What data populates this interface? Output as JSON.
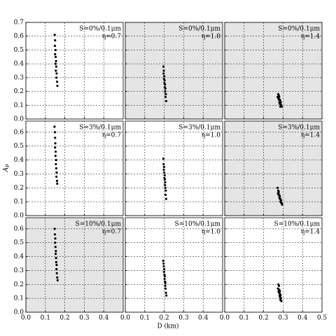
{
  "figure": {
    "xlabel": "D (km)",
    "ylabel_main": "A",
    "ylabel_sub": "p"
  },
  "chart_data": [
    {
      "type": "scatter",
      "background": "#ffffff",
      "annotations": [
        "S=0%/0.1μm",
        "η=0.7"
      ],
      "xlim": [
        0,
        0.5
      ],
      "ylim": [
        0,
        0.7
      ],
      "xticks": [
        0,
        0.1,
        0.2,
        0.3,
        0.4
      ],
      "yticks": [
        {
          "value": 0,
          "label": "0.0"
        },
        {
          "value": 0.1,
          "label": "0.1"
        },
        {
          "value": 0.2,
          "label": "0.2"
        },
        {
          "value": 0.3,
          "label": "0.3"
        },
        {
          "value": 0.4,
          "label": "0.4"
        },
        {
          "value": 0.5,
          "label": "0.5"
        },
        {
          "value": 0.6,
          "label": "0.6"
        },
        {
          "value": 0.7,
          "label": "0.7"
        }
      ],
      "grid": true,
      "color": "#000000",
      "x": [
        0.148,
        0.15,
        0.149,
        0.152,
        0.15,
        0.153,
        0.155,
        0.152,
        0.156,
        0.154,
        0.158,
        0.157,
        0.16,
        0.162
      ],
      "values": [
        0.61,
        0.57,
        0.53,
        0.5,
        0.47,
        0.45,
        0.42,
        0.4,
        0.38,
        0.35,
        0.33,
        0.3,
        0.27,
        0.24
      ]
    },
    {
      "type": "scatter",
      "background": "#e5e5e5",
      "annotations": [
        "S=0%/0.1μm",
        "η=1.0"
      ],
      "xlim": [
        0,
        0.5
      ],
      "ylim": [
        0,
        0.7
      ],
      "xticks": [
        0,
        0.1,
        0.2,
        0.3,
        0.4
      ],
      "yticks": [
        0,
        0.1,
        0.2,
        0.3,
        0.4,
        0.5,
        0.6,
        0.7
      ],
      "grid": true,
      "color": "#000000",
      "x": [
        0.196,
        0.198,
        0.197,
        0.2,
        0.199,
        0.202,
        0.201,
        0.204,
        0.203,
        0.206,
        0.205,
        0.208,
        0.207,
        0.21
      ],
      "values": [
        0.38,
        0.35,
        0.33,
        0.31,
        0.29,
        0.28,
        0.26,
        0.25,
        0.23,
        0.22,
        0.2,
        0.18,
        0.16,
        0.13
      ]
    },
    {
      "type": "scatter",
      "background": "#e5e5e5",
      "annotations": [
        "S=0%/0.1μm",
        "η=1.4"
      ],
      "xlim": [
        0,
        0.5
      ],
      "ylim": [
        0,
        0.7
      ],
      "xticks": [
        0,
        0.1,
        0.2,
        0.3,
        0.4,
        0.5
      ],
      "yticks": [
        0,
        0.1,
        0.2,
        0.3,
        0.4,
        0.5,
        0.6,
        0.7
      ],
      "grid": true,
      "color": "#000000",
      "x": [
        0.275,
        0.278,
        0.272,
        0.28,
        0.276,
        0.283,
        0.279,
        0.285,
        0.281,
        0.288,
        0.284,
        0.29,
        0.286,
        0.293
      ],
      "values": [
        0.18,
        0.17,
        0.16,
        0.16,
        0.15,
        0.14,
        0.14,
        0.13,
        0.12,
        0.12,
        0.11,
        0.1,
        0.09,
        0.09
      ]
    },
    {
      "type": "scatter",
      "background": "#ffffff",
      "annotations": [
        "S=3%/0.1μm",
        "η=0.7"
      ],
      "xlim": [
        0,
        0.5
      ],
      "ylim": [
        0,
        0.68
      ],
      "xticks": [
        0,
        0.1,
        0.2,
        0.3,
        0.4
      ],
      "yticks": [
        {
          "value": 0,
          "label": "0.0"
        },
        {
          "value": 0.1,
          "label": "0.1"
        },
        {
          "value": 0.2,
          "label": "0.2"
        },
        {
          "value": 0.3,
          "label": "0.3"
        },
        {
          "value": 0.4,
          "label": "0.4"
        },
        {
          "value": 0.5,
          "label": "0.5"
        },
        {
          "value": 0.6,
          "label": "0.6"
        }
      ],
      "grid": true,
      "color": "#000000",
      "x": [
        0.147,
        0.149,
        0.15,
        0.151,
        0.15,
        0.153,
        0.152,
        0.155,
        0.154,
        0.156,
        0.158,
        0.157,
        0.16,
        0.161
      ],
      "values": [
        0.64,
        0.6,
        0.56,
        0.52,
        0.49,
        0.46,
        0.43,
        0.4,
        0.37,
        0.34,
        0.31,
        0.28,
        0.25,
        0.23
      ]
    },
    {
      "type": "scatter",
      "background": "#ffffff",
      "annotations": [
        "S=3%/0.1μm",
        "η=1.0"
      ],
      "xlim": [
        0,
        0.5
      ],
      "ylim": [
        0,
        0.68
      ],
      "xticks": [
        0,
        0.1,
        0.2,
        0.3,
        0.4
      ],
      "yticks": [
        0,
        0.1,
        0.2,
        0.3,
        0.4,
        0.5,
        0.6
      ],
      "grid": true,
      "color": "#000000",
      "x": [
        0.196,
        0.197,
        0.199,
        0.198,
        0.2,
        0.202,
        0.201,
        0.203,
        0.205,
        0.204,
        0.206,
        0.208,
        0.207,
        0.21
      ],
      "values": [
        0.41,
        0.37,
        0.35,
        0.33,
        0.31,
        0.29,
        0.27,
        0.26,
        0.24,
        0.22,
        0.2,
        0.18,
        0.15,
        0.12
      ]
    },
    {
      "type": "scatter",
      "background": "#e5e5e5",
      "annotations": [
        "S=3%/0.1μm",
        "η=1.4"
      ],
      "xlim": [
        0,
        0.5
      ],
      "ylim": [
        0,
        0.68
      ],
      "xticks": [
        0,
        0.1,
        0.2,
        0.3,
        0.4,
        0.5
      ],
      "yticks": [
        0,
        0.1,
        0.2,
        0.3,
        0.4,
        0.5,
        0.6
      ],
      "grid": true,
      "color": "#000000",
      "x": [
        0.272,
        0.275,
        0.278,
        0.274,
        0.28,
        0.277,
        0.283,
        0.281,
        0.286,
        0.284,
        0.289,
        0.287,
        0.292,
        0.295
      ],
      "values": [
        0.2,
        0.18,
        0.17,
        0.16,
        0.15,
        0.15,
        0.14,
        0.13,
        0.12,
        0.12,
        0.11,
        0.1,
        0.09,
        0.08
      ]
    },
    {
      "type": "scatter",
      "background": "#e5e5e5",
      "annotations": [
        "S=10%/0.1μm",
        "η=0.7"
      ],
      "xlim": [
        0,
        0.5
      ],
      "ylim": [
        0,
        0.68
      ],
      "xticks": [
        {
          "value": 0,
          "label": "0.0"
        },
        {
          "value": 0.1,
          "label": "0.1"
        },
        {
          "value": 0.2,
          "label": "0.2"
        },
        {
          "value": 0.3,
          "label": "0.3"
        },
        {
          "value": 0.4,
          "label": "0.4"
        }
      ],
      "yticks": [
        {
          "value": 0,
          "label": "0.0"
        },
        {
          "value": 0.1,
          "label": "0.1"
        },
        {
          "value": 0.2,
          "label": "0.2"
        },
        {
          "value": 0.3,
          "label": "0.3"
        },
        {
          "value": 0.4,
          "label": "0.4"
        },
        {
          "value": 0.5,
          "label": "0.5"
        },
        {
          "value": 0.6,
          "label": "0.6"
        }
      ],
      "grid": true,
      "color": "#000000",
      "x": [
        0.148,
        0.149,
        0.151,
        0.15,
        0.152,
        0.154,
        0.153,
        0.155,
        0.156,
        0.158,
        0.157,
        0.159,
        0.161,
        0.163
      ],
      "values": [
        0.6,
        0.56,
        0.53,
        0.5,
        0.47,
        0.44,
        0.42,
        0.39,
        0.36,
        0.34,
        0.31,
        0.28,
        0.25,
        0.23
      ]
    },
    {
      "type": "scatter",
      "background": "#ffffff",
      "annotations": [
        "S=10%/0.1μm",
        "η=1.0"
      ],
      "xlim": [
        0,
        0.5
      ],
      "ylim": [
        0,
        0.68
      ],
      "xticks": [
        {
          "value": 0,
          "label": "0.0"
        },
        {
          "value": 0.1,
          "label": "0.1"
        },
        {
          "value": 0.2,
          "label": "0.2"
        },
        {
          "value": 0.3,
          "label": "0.3"
        },
        {
          "value": 0.4,
          "label": "0.4"
        }
      ],
      "yticks": [
        0,
        0.1,
        0.2,
        0.3,
        0.4,
        0.5,
        0.6
      ],
      "grid": true,
      "color": "#000000",
      "x": [
        0.195,
        0.197,
        0.198,
        0.2,
        0.199,
        0.201,
        0.203,
        0.202,
        0.204,
        0.206,
        0.205,
        0.207,
        0.209,
        0.211
      ],
      "values": [
        0.37,
        0.35,
        0.33,
        0.31,
        0.29,
        0.27,
        0.26,
        0.24,
        0.22,
        0.21,
        0.19,
        0.17,
        0.14,
        0.12
      ]
    },
    {
      "type": "scatter",
      "background": "#ffffff",
      "annotations": [
        "S=10%/0.1μm",
        "η=1.4"
      ],
      "xlim": [
        0,
        0.5
      ],
      "ylim": [
        0,
        0.68
      ],
      "xticks": [
        {
          "value": 0,
          "label": "0.0"
        },
        {
          "value": 0.1,
          "label": "0.1"
        },
        {
          "value": 0.2,
          "label": "0.2"
        },
        {
          "value": 0.3,
          "label": "0.3"
        },
        {
          "value": 0.4,
          "label": "0.4"
        },
        {
          "value": 0.5,
          "label": "0.5"
        }
      ],
      "yticks": [
        0,
        0.1,
        0.2,
        0.3,
        0.4,
        0.5,
        0.6
      ],
      "grid": true,
      "color": "#000000",
      "x": [
        0.276,
        0.279,
        0.274,
        0.281,
        0.277,
        0.283,
        0.28,
        0.285,
        0.282,
        0.287,
        0.284,
        0.289,
        0.286,
        0.291
      ],
      "values": [
        0.2,
        0.19,
        0.17,
        0.16,
        0.15,
        0.15,
        0.14,
        0.13,
        0.12,
        0.12,
        0.11,
        0.1,
        0.09,
        0.08
      ]
    }
  ]
}
